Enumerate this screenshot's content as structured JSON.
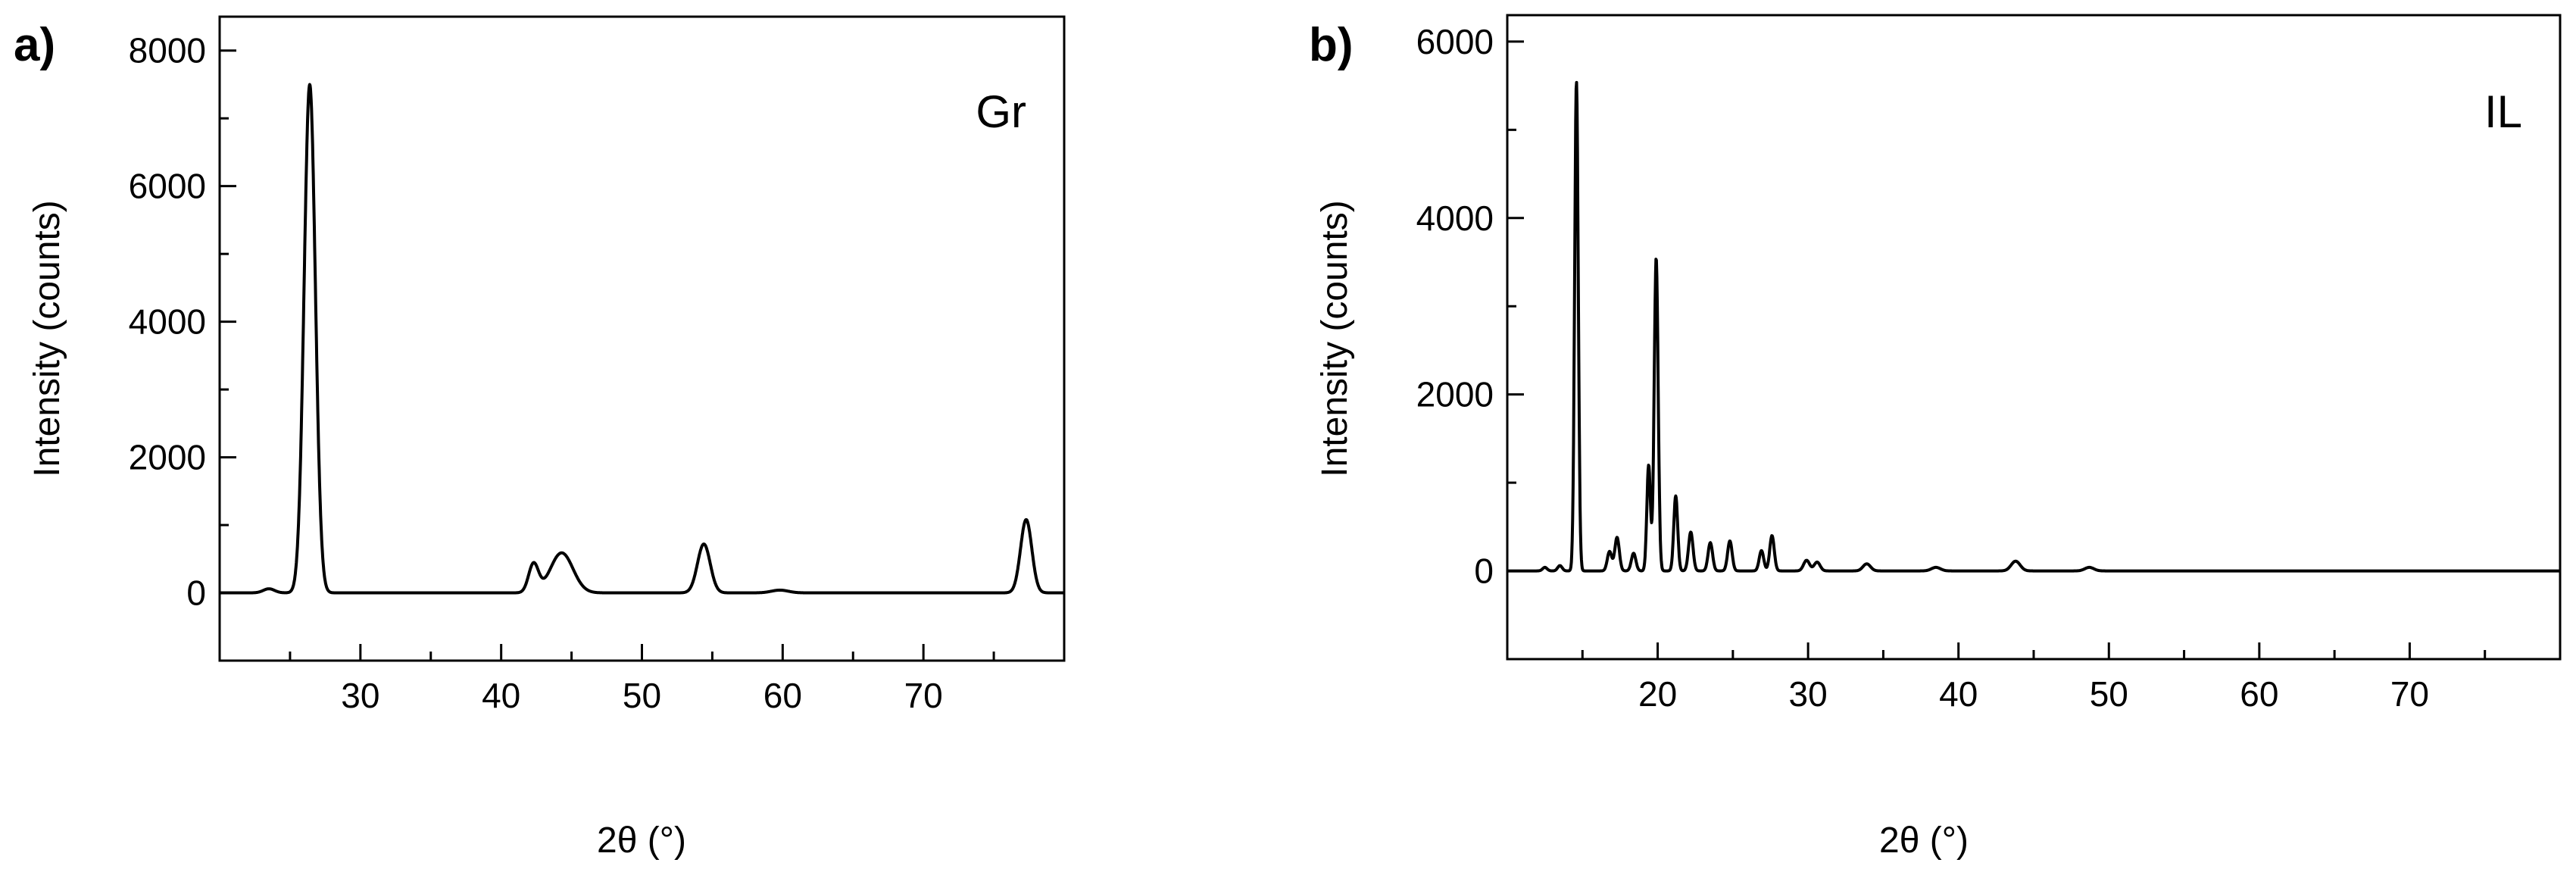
{
  "chart_data": [
    {
      "panel": "a)",
      "type": "line",
      "series_label": "Gr",
      "xlabel": "2θ (°)",
      "ylabel": "Intensity (counts)",
      "xlim": [
        20,
        80
      ],
      "ylim": [
        -1000,
        8500
      ],
      "x_ticks": [
        30,
        40,
        50,
        60,
        70
      ],
      "y_ticks": [
        0,
        2000,
        4000,
        6000,
        8000
      ],
      "baseline": 0,
      "peaks": [
        {
          "x": 23.5,
          "y": 60,
          "w": 0.4
        },
        {
          "x": 26.4,
          "y": 7500,
          "w": 0.4
        },
        {
          "x": 42.3,
          "y": 420,
          "w": 0.35
        },
        {
          "x": 44.3,
          "y": 590,
          "w": 0.8
        },
        {
          "x": 54.4,
          "y": 720,
          "w": 0.45
        },
        {
          "x": 59.8,
          "y": 40,
          "w": 0.6
        },
        {
          "x": 77.3,
          "y": 1080,
          "w": 0.4
        }
      ]
    },
    {
      "panel": "b)",
      "type": "line",
      "series_label": "IL",
      "xlabel": "2θ (°)",
      "ylabel": "Intensity (counts)",
      "xlim": [
        10,
        80
      ],
      "ylim": [
        -1000,
        6300
      ],
      "x_ticks": [
        20,
        30,
        40,
        50,
        60,
        70
      ],
      "y_ticks": [
        0,
        2000,
        4000,
        6000
      ],
      "baseline": 0,
      "peaks": [
        {
          "x": 12.5,
          "y": 40,
          "w": 0.15
        },
        {
          "x": 13.5,
          "y": 60,
          "w": 0.15
        },
        {
          "x": 14.6,
          "y": 5550,
          "w": 0.12
        },
        {
          "x": 16.8,
          "y": 220,
          "w": 0.15
        },
        {
          "x": 17.3,
          "y": 380,
          "w": 0.15
        },
        {
          "x": 18.4,
          "y": 200,
          "w": 0.15
        },
        {
          "x": 19.4,
          "y": 1200,
          "w": 0.12
        },
        {
          "x": 19.9,
          "y": 3550,
          "w": 0.13
        },
        {
          "x": 21.2,
          "y": 850,
          "w": 0.13
        },
        {
          "x": 22.2,
          "y": 440,
          "w": 0.15
        },
        {
          "x": 23.5,
          "y": 320,
          "w": 0.15
        },
        {
          "x": 24.8,
          "y": 340,
          "w": 0.15
        },
        {
          "x": 26.9,
          "y": 230,
          "w": 0.15
        },
        {
          "x": 27.6,
          "y": 400,
          "w": 0.15
        },
        {
          "x": 29.9,
          "y": 120,
          "w": 0.2
        },
        {
          "x": 30.6,
          "y": 100,
          "w": 0.2
        },
        {
          "x": 33.9,
          "y": 80,
          "w": 0.25
        },
        {
          "x": 38.5,
          "y": 40,
          "w": 0.3
        },
        {
          "x": 43.8,
          "y": 110,
          "w": 0.3
        },
        {
          "x": 48.7,
          "y": 40,
          "w": 0.3
        }
      ]
    }
  ]
}
